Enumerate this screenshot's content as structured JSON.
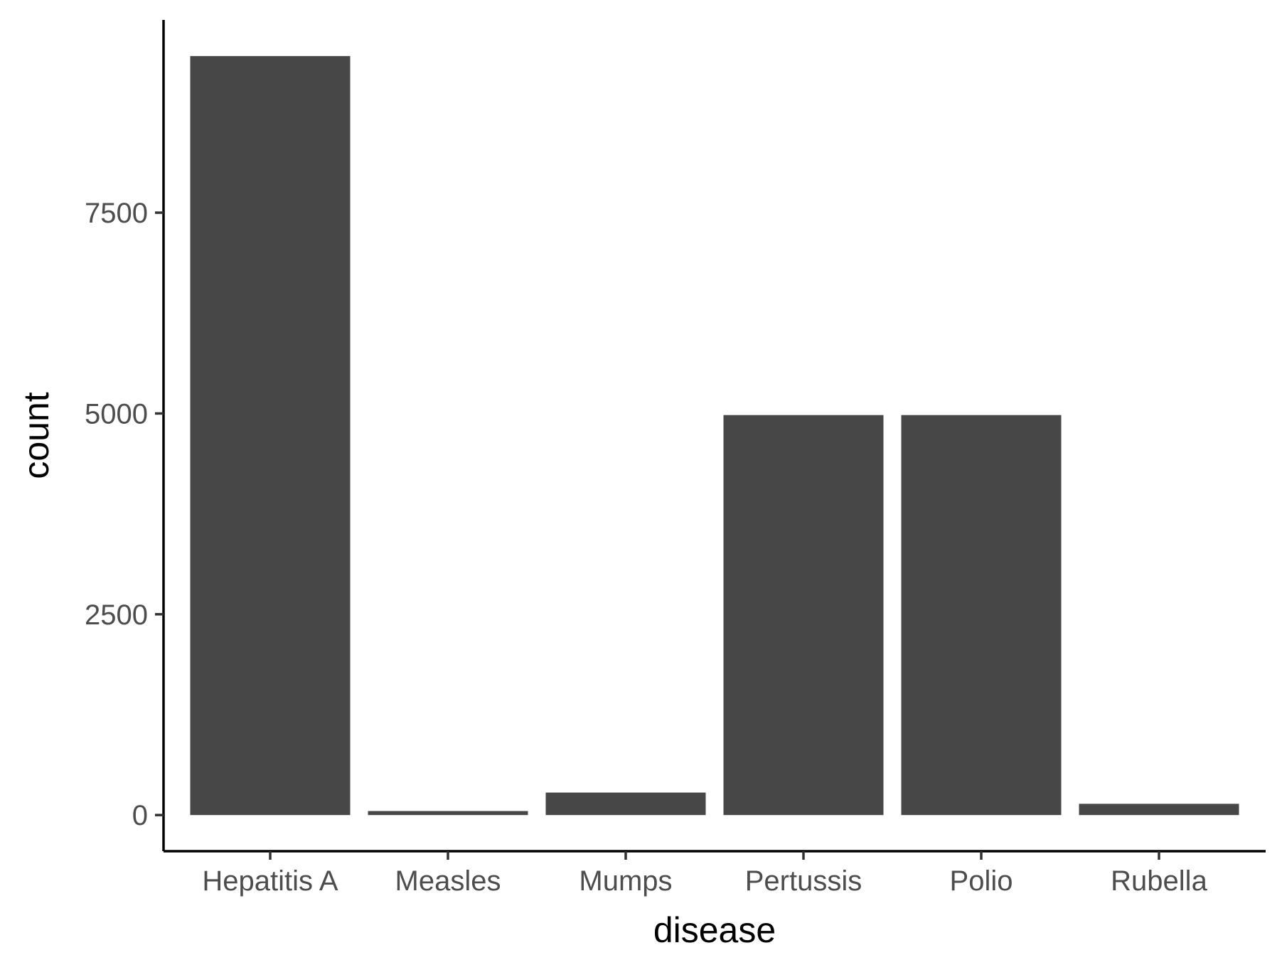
{
  "chart_data": {
    "type": "bar",
    "title": "",
    "xlabel": "disease",
    "ylabel": "count",
    "categories": [
      "Hepatitis A",
      "Measles",
      "Mumps",
      "Pertussis",
      "Polio",
      "Rubella"
    ],
    "values": [
      9450,
      50,
      280,
      4980,
      4980,
      140
    ],
    "ylim": [
      -450,
      9900
    ],
    "yticks": [
      0,
      2500,
      5000,
      7500
    ],
    "ytick_labels": [
      "0",
      "2500",
      "5000",
      "7500"
    ],
    "grid": false,
    "legend": "none",
    "bar_color": "#474747"
  }
}
